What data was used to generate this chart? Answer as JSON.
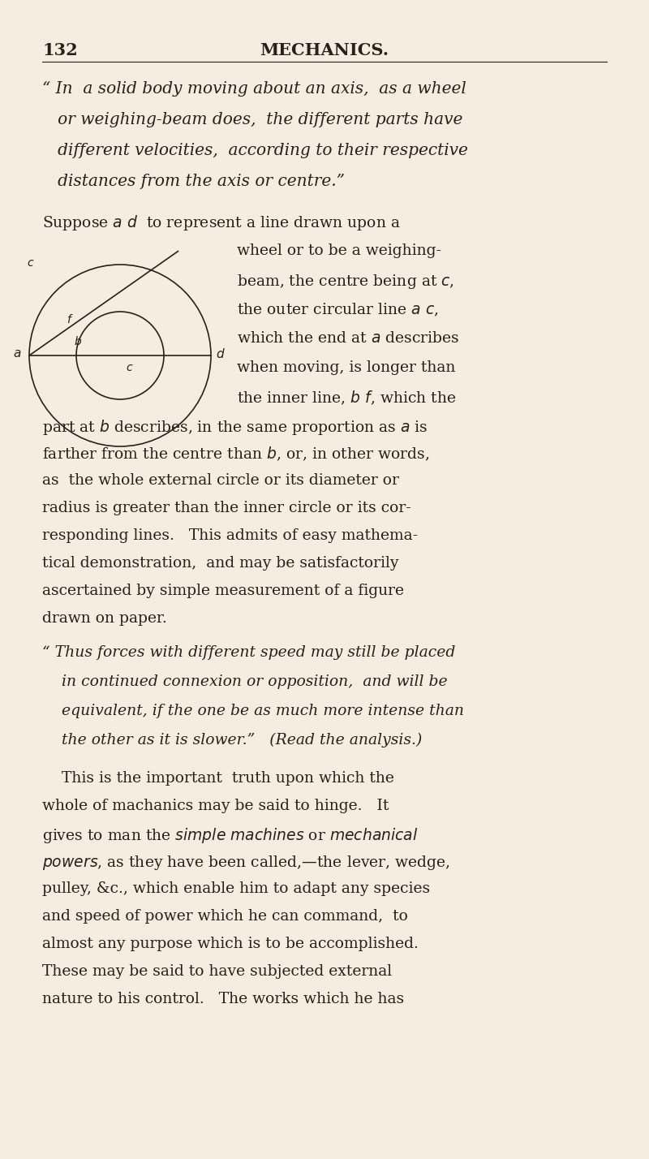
{
  "bg_color": "#f5ede0",
  "text_color": "#2a1f1a",
  "page_number": "132",
  "header_title": "MECHANICS.",
  "quote1_lines": [
    "“ In  a solid body moving about an axis,  as a wheel",
    "   or weighing-beam does,  the different parts have",
    "   different velocities,  according to their respective",
    "   distances from the axis or centre.”"
  ],
  "right_lines": [
    "wheel or to be a weighing-",
    "beam, the centre being at c,",
    "the outer circular line a c,",
    "which the end at a describes",
    "when moving, is longer than",
    "the inner line, b f, which the"
  ],
  "cont_lines": [
    "part at b describes, in the same proportion as a is",
    "farther from the centre than b, or, in other words,",
    "as  the whole external circle or its diameter or",
    "radius is greater than the inner circle or its cor-",
    "responding lines.   This admits of easy mathema-",
    "tical demonstration,  and may be satisfactorily",
    "ascertained by simple measurement of a figure",
    "drawn on paper."
  ],
  "quote2_lines": [
    "“ Thus forces with different speed may still be placed",
    "    in continued connexion or opposition,  and will be",
    "    equivalent, if the one be as much more intense than",
    "    the other as it is slower.”   (Read the analysis.)"
  ],
  "para2_lines": [
    "    This is the important  truth upon which the",
    "whole of machanics may be said to hinge.   It",
    "gives to man the simple machines or mechanical",
    "powers, as they have been called,—the lever, wedge,",
    "pulley, &c., which enable him to adapt any species",
    "and speed of power which he can command,  to",
    "almost any purpose which is to be accomplished.",
    "These may be said to have subjected external",
    "nature to his control.   The works which he has"
  ]
}
